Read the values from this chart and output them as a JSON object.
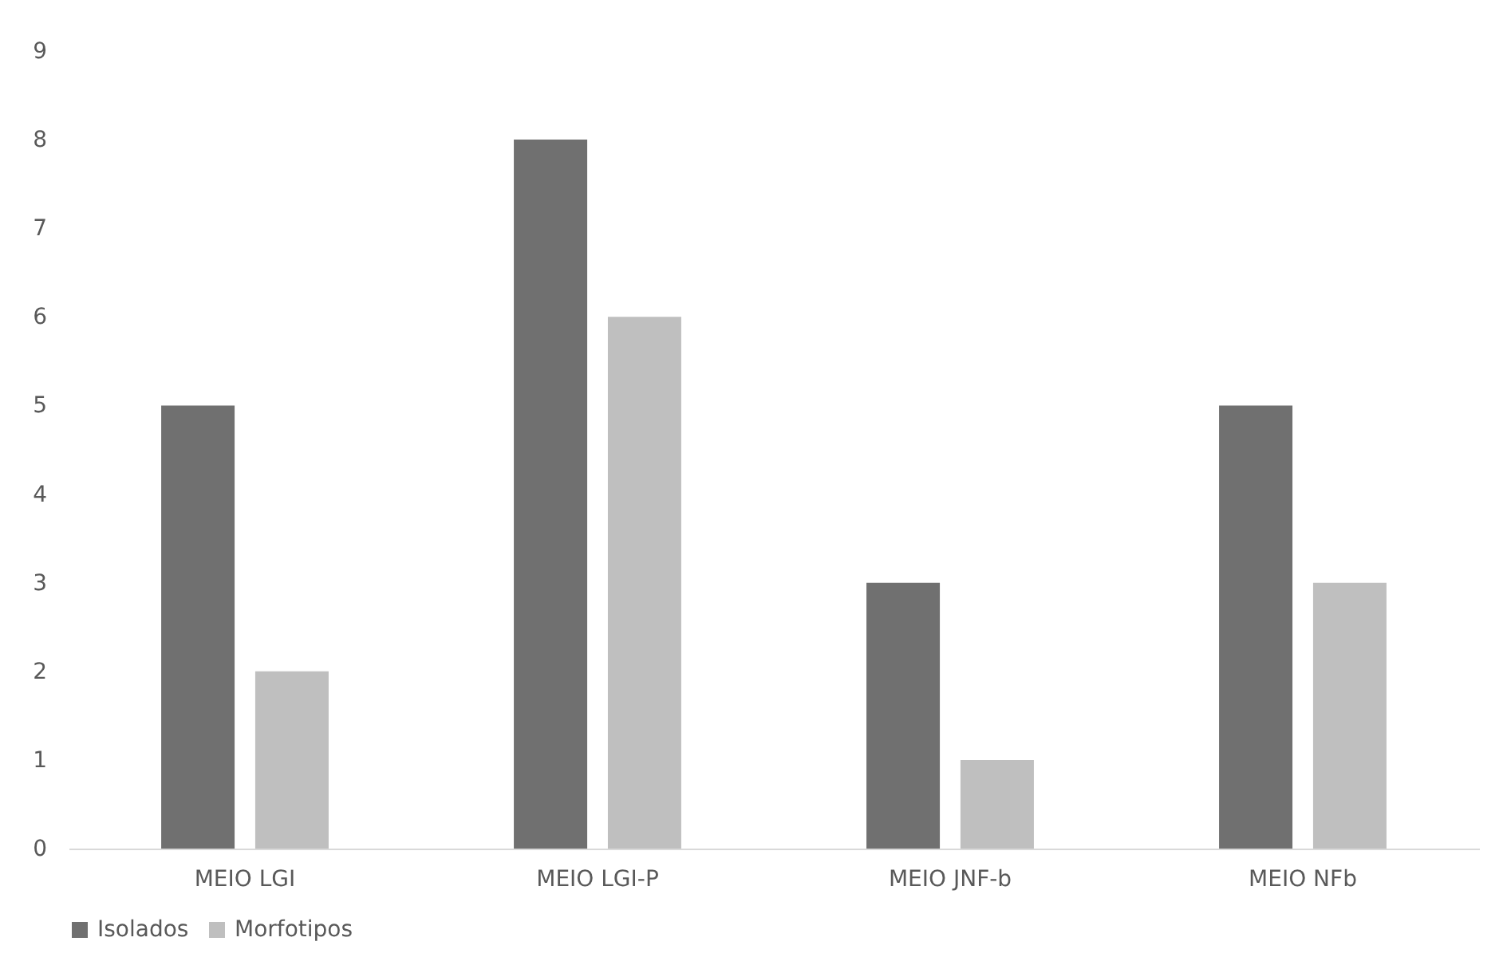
{
  "chart_data": {
    "type": "bar",
    "categories": [
      "MEIO LGI",
      "MEIO LGI-P",
      "MEIO JNF-b",
      "MEIO NFb"
    ],
    "series": [
      {
        "name": "Isolados",
        "color": "#707070",
        "values": [
          5,
          8,
          3,
          5
        ]
      },
      {
        "name": "Morfotipos",
        "color": "#bfbfbf",
        "values": [
          2,
          6,
          1,
          3
        ]
      }
    ],
    "ylim": [
      0,
      9
    ],
    "yticks": [
      0,
      1,
      2,
      3,
      4,
      5,
      6,
      7,
      8,
      9
    ],
    "grid": false,
    "legend": "bottom"
  }
}
